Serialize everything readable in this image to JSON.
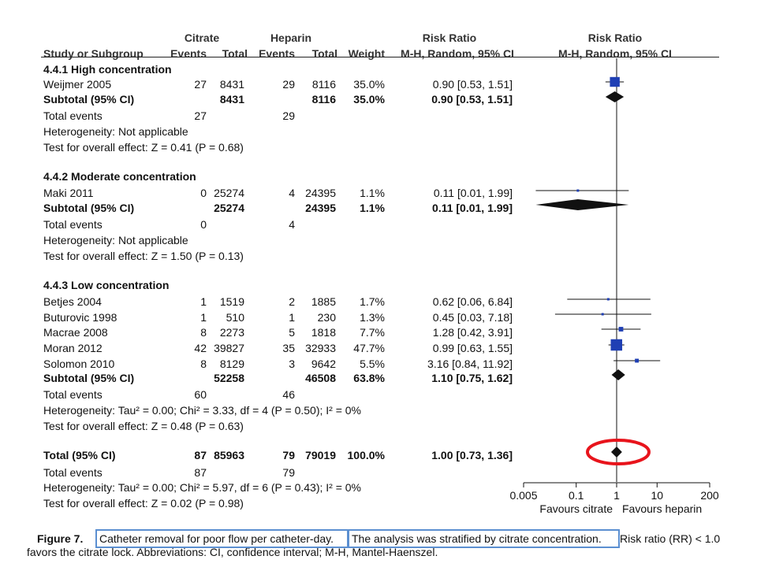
{
  "headers": {
    "citrate": "Citrate",
    "heparin": "Heparin",
    "rr_title": "Risk Ratio",
    "rr_plot_title": "Risk Ratio",
    "study": "Study or Subgroup",
    "events1": "Events",
    "total1": "Total",
    "events2": "Events",
    "total2": "Total",
    "weight": "Weight",
    "method": "M-H, Random, 95% CI",
    "method_plot": "M-H, Random, 95% CI"
  },
  "rows": [
    {
      "kind": "group",
      "label": "4.4.1 High concentration"
    },
    {
      "kind": "study",
      "label": "Weijmer 2005",
      "e1": "27",
      "t1": "8431",
      "e2": "29",
      "t2": "8116",
      "w": "35.0%",
      "ci": "0.90 [0.53, 1.51]"
    },
    {
      "kind": "subtotal",
      "label": "Subtotal (95% CI)",
      "t1": "8431",
      "t2": "8116",
      "w": "35.0%",
      "ci": "0.90 [0.53, 1.51]"
    },
    {
      "kind": "text",
      "label": "Total events",
      "e1": "27",
      "e2": "29"
    },
    {
      "kind": "text",
      "label": "Heterogeneity: Not applicable"
    },
    {
      "kind": "text",
      "label": "Test for overall effect: Z = 0.41 (P = 0.68)"
    },
    {
      "kind": "group",
      "label": "4.4.2 Moderate concentration"
    },
    {
      "kind": "study",
      "label": "Maki 2011",
      "e1": "0",
      "t1": "25274",
      "e2": "4",
      "t2": "24395",
      "w": "1.1%",
      "ci": "0.11 [0.01, 1.99]"
    },
    {
      "kind": "subtotal",
      "label": "Subtotal (95% CI)",
      "t1": "25274",
      "t2": "24395",
      "w": "1.1%",
      "ci": "0.11 [0.01, 1.99]"
    },
    {
      "kind": "text",
      "label": "Total events",
      "e1": "0",
      "e2": "4"
    },
    {
      "kind": "text",
      "label": "Heterogeneity: Not applicable"
    },
    {
      "kind": "text",
      "label": "Test for overall effect: Z = 1.50 (P = 0.13)"
    },
    {
      "kind": "group",
      "label": "4.4.3 Low concentration"
    },
    {
      "kind": "study",
      "label": "Betjes 2004",
      "e1": "1",
      "t1": "1519",
      "e2": "2",
      "t2": "1885",
      "w": "1.7%",
      "ci": "0.62 [0.06, 6.84]"
    },
    {
      "kind": "study",
      "label": "Buturovic 1998",
      "e1": "1",
      "t1": "510",
      "e2": "1",
      "t2": "230",
      "w": "1.3%",
      "ci": "0.45 [0.03, 7.18]"
    },
    {
      "kind": "study",
      "label": "Macrae 2008",
      "e1": "8",
      "t1": "2273",
      "e2": "5",
      "t2": "1818",
      "w": "7.7%",
      "ci": "1.28 [0.42, 3.91]"
    },
    {
      "kind": "study",
      "label": "Moran 2012",
      "e1": "42",
      "t1": "39827",
      "e2": "35",
      "t2": "32933",
      "w": "47.7%",
      "ci": "0.99 [0.63, 1.55]"
    },
    {
      "kind": "study",
      "label": "Solomon 2010",
      "e1": "8",
      "t1": "8129",
      "e2": "3",
      "t2": "9642",
      "w": "5.5%",
      "ci": "3.16 [0.84, 11.92]"
    },
    {
      "kind": "subtotal",
      "label": "Subtotal (95% CI)",
      "t1": "52258",
      "t2": "46508",
      "w": "63.8%",
      "ci": "1.10 [0.75, 1.62]"
    },
    {
      "kind": "text",
      "label": "Total events",
      "e1": "60",
      "e2": "46"
    },
    {
      "kind": "text",
      "label": "Heterogeneity: Tau² = 0.00; Chi² = 3.33, df = 4 (P = 0.50); I² = 0%"
    },
    {
      "kind": "text",
      "label": "Test for overall effect: Z = 0.48 (P = 0.63)"
    },
    {
      "kind": "subtotal",
      "label": "Total (95% CI)",
      "e1": "87",
      "t1": "85963",
      "e2": "79",
      "t2": "79019",
      "w": "100.0%",
      "ci": "1.00 [0.73, 1.36]"
    },
    {
      "kind": "text",
      "label": "Total events",
      "e1": "87",
      "e2": "79"
    },
    {
      "kind": "text",
      "label": "Heterogeneity: Tau² = 0.00; Chi² = 5.97, df = 6 (P = 0.43); I² = 0%"
    },
    {
      "kind": "text",
      "label": "Test for overall effect: Z = 0.02 (P = 0.98)"
    }
  ],
  "chart_data": {
    "type": "forest",
    "scale": "log",
    "xlim": [
      0.005,
      200
    ],
    "xticks": [
      "0.005",
      "0.1",
      "1",
      "10",
      "200"
    ],
    "xtick_values": [
      0.005,
      0.1,
      1,
      10,
      200
    ],
    "left_label": "Favours citrate",
    "right_label": "Favours heparin",
    "null_value": 1,
    "studies": [
      {
        "name": "Weijmer 2005",
        "rr": 0.9,
        "lo": 0.53,
        "hi": 1.51,
        "weight": 35.0
      },
      {
        "name": "Maki 2011",
        "rr": 0.11,
        "lo": 0.01,
        "hi": 1.99,
        "weight": 1.1
      },
      {
        "name": "Betjes 2004",
        "rr": 0.62,
        "lo": 0.06,
        "hi": 6.84,
        "weight": 1.7
      },
      {
        "name": "Buturovic 1998",
        "rr": 0.45,
        "lo": 0.03,
        "hi": 7.18,
        "weight": 1.3
      },
      {
        "name": "Macrae 2008",
        "rr": 1.28,
        "lo": 0.42,
        "hi": 3.91,
        "weight": 7.7
      },
      {
        "name": "Moran 2012",
        "rr": 0.99,
        "lo": 0.63,
        "hi": 1.55,
        "weight": 47.7
      },
      {
        "name": "Solomon 2010",
        "rr": 3.16,
        "lo": 0.84,
        "hi": 11.92,
        "weight": 5.5
      }
    ],
    "pooled": [
      {
        "name": "Subtotal 4.4.1",
        "rr": 0.9,
        "lo": 0.53,
        "hi": 1.51
      },
      {
        "name": "Subtotal 4.4.2",
        "rr": 0.11,
        "lo": 0.01,
        "hi": 1.99
      },
      {
        "name": "Subtotal 4.4.3",
        "rr": 1.1,
        "lo": 0.75,
        "hi": 1.62
      },
      {
        "name": "Total",
        "rr": 1.0,
        "lo": 0.73,
        "hi": 1.36
      }
    ],
    "highlight_color": "#e8141c",
    "marker_color": "#1f3fb4"
  },
  "caption": {
    "figure": "Figure 7.",
    "part1": "Catheter removal for poor flow per catheter-day.",
    "part2": "The analysis was stratified by citrate concentration.",
    "part3": "Risk ratio (RR) < 1.0",
    "line2": "favors the citrate lock. Abbreviations: CI, confidence interval; M-H, Mantel-Haenszel."
  }
}
